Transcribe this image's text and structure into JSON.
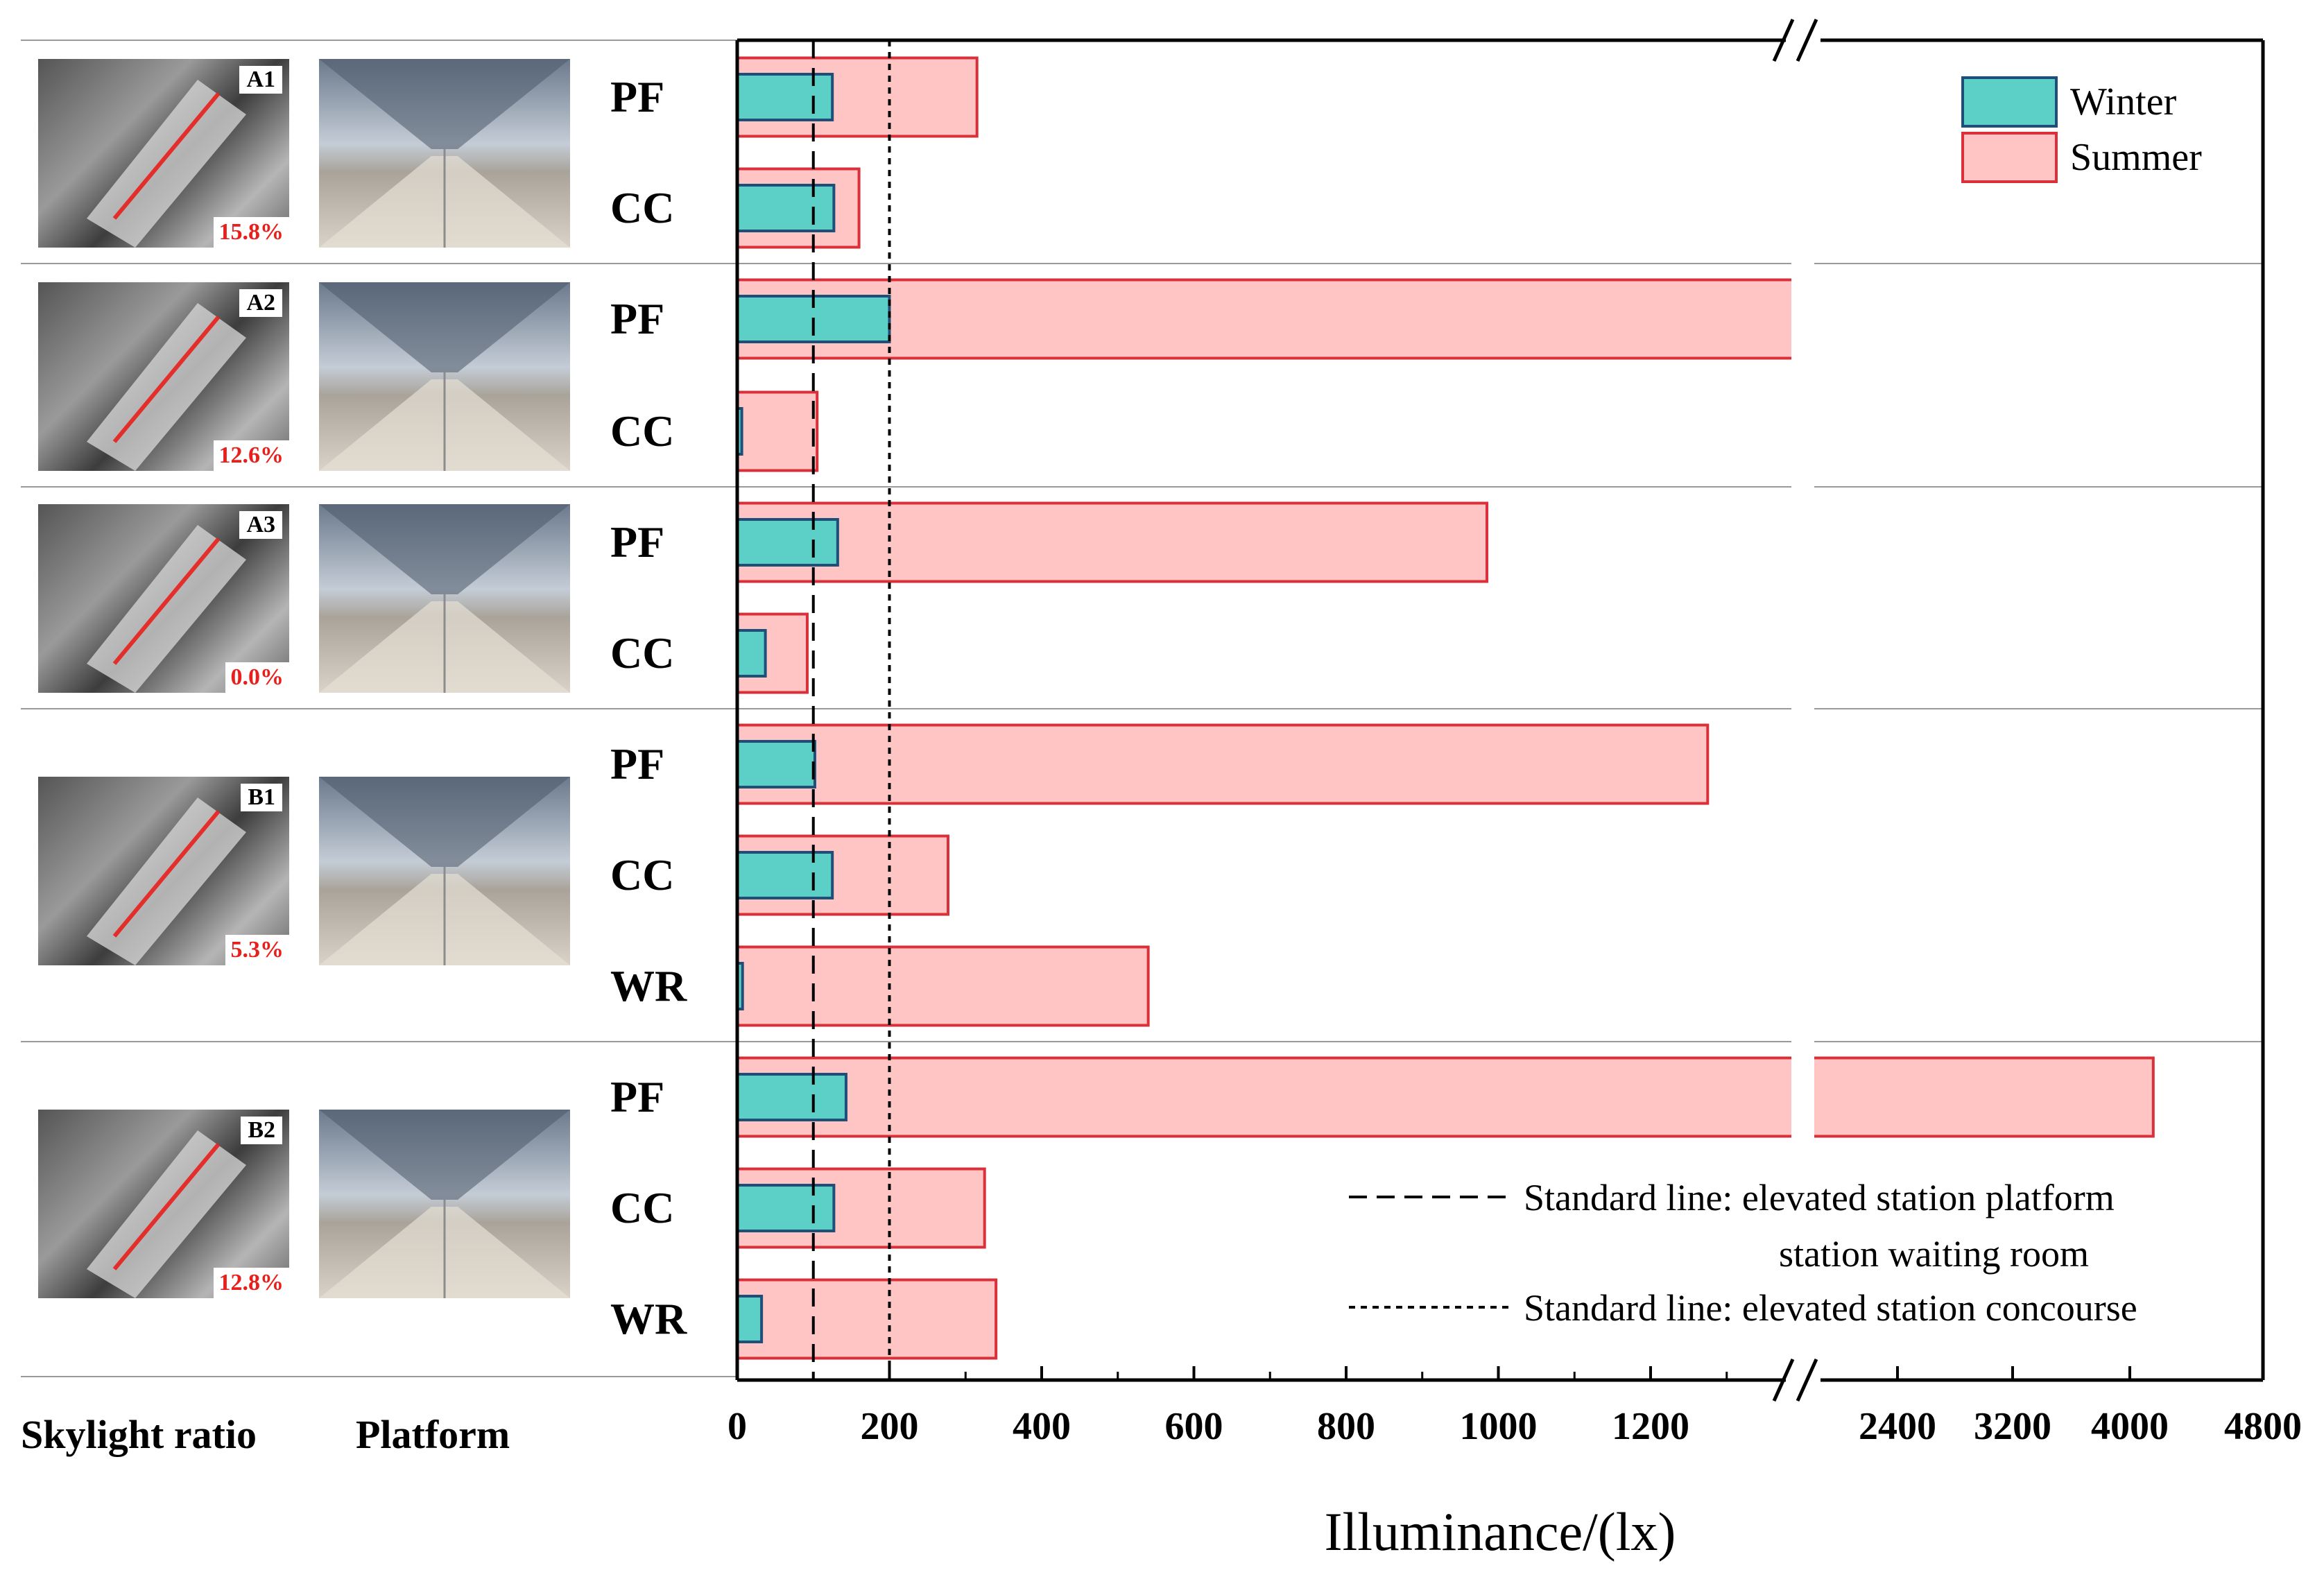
{
  "chart_data": {
    "type": "bar",
    "orientation": "horizontal",
    "xlabel": "Illuminance/(lx)",
    "x_ticks": [
      "0",
      "200",
      "400",
      "600",
      "800",
      "1000",
      "1200",
      "2400",
      "3200",
      "4000",
      "4800"
    ],
    "x_axis_break": true,
    "grid": false,
    "legend_position": "top-right",
    "series": [
      {
        "name": "Winter",
        "color": "#5ccfc6",
        "edge": "#1f4e79"
      },
      {
        "name": "Summer",
        "color": "#ffc4c4",
        "edge": "#d9303a"
      }
    ],
    "groups": [
      {
        "id": "A1",
        "skylight_ratio": "15.8%",
        "rows": [
          {
            "label": "PF",
            "Winter": 125,
            "Summer": 315
          },
          {
            "label": "CC",
            "Winter": 127,
            "Summer": 160
          }
        ]
      },
      {
        "id": "A2",
        "skylight_ratio": "12.6%",
        "rows": [
          {
            "label": "PF",
            "Winter": 200,
            "Summer": 2360
          },
          {
            "label": "CC",
            "Winter": 6,
            "Summer": 105
          }
        ]
      },
      {
        "id": "A3",
        "skylight_ratio": "0.0%",
        "rows": [
          {
            "label": "PF",
            "Winter": 132,
            "Summer": 985
          },
          {
            "label": "CC",
            "Winter": 37,
            "Summer": 92
          }
        ]
      },
      {
        "id": "B1",
        "skylight_ratio": "5.3%",
        "rows": [
          {
            "label": "PF",
            "Winter": 102,
            "Summer": 1275
          },
          {
            "label": "CC",
            "Winter": 125,
            "Summer": 277
          },
          {
            "label": "WR",
            "Winter": 7,
            "Summer": 540
          }
        ]
      },
      {
        "id": "B2",
        "skylight_ratio": "12.8%",
        "rows": [
          {
            "label": "PF",
            "Winter": 143,
            "Summer": 4450
          },
          {
            "label": "CC",
            "Winter": 127,
            "Summer": 325
          },
          {
            "label": "WR",
            "Winter": 32,
            "Summer": 340
          }
        ]
      }
    ],
    "reference_lines": [
      {
        "value": 100,
        "style": "dashed",
        "label": "Standard line: elevated station platform",
        "label2": "station waiting room"
      },
      {
        "value": 200,
        "style": "dotted",
        "label": "Standard line: elevated station concourse"
      }
    ],
    "column_headers": [
      "Skylight ratio",
      "Platform"
    ]
  }
}
